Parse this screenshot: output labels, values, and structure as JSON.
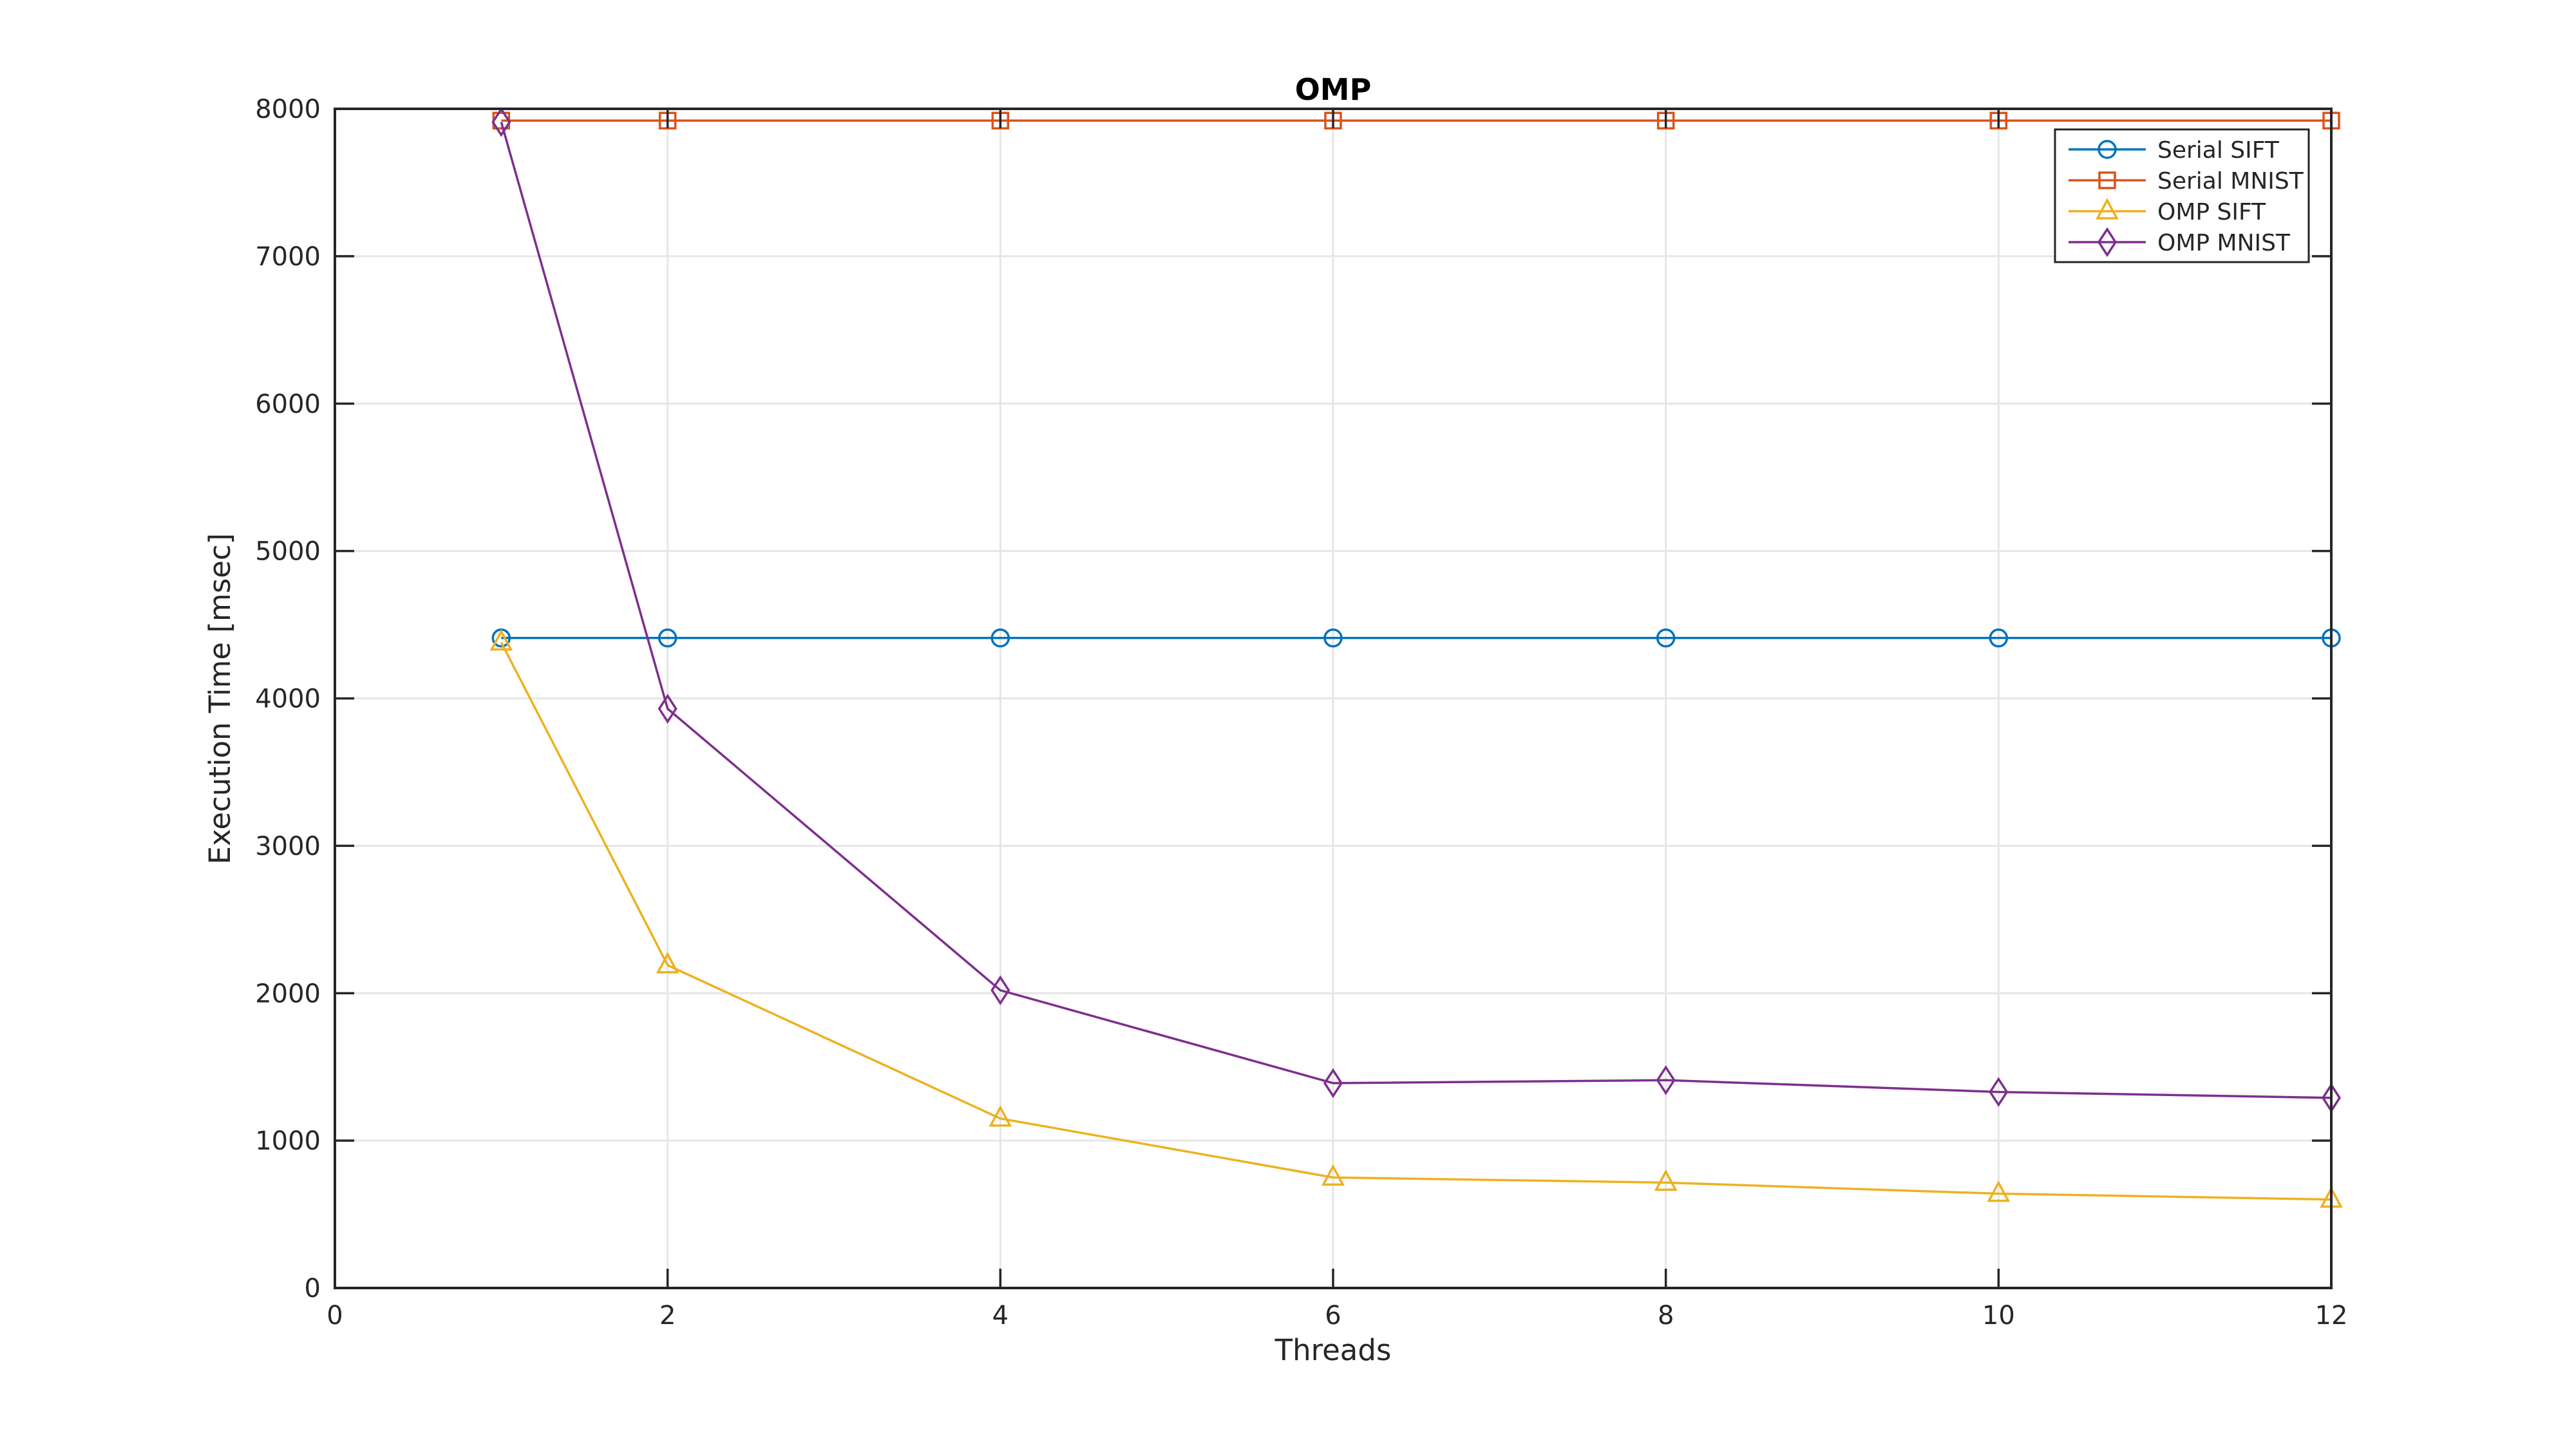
{
  "chart_data": {
    "type": "line",
    "title": "OMP",
    "xlabel": "Threads",
    "ylabel": "Execution Time [msec]",
    "xlim": [
      0,
      12
    ],
    "ylim": [
      0,
      8000
    ],
    "x_ticks": [
      0,
      2,
      4,
      6,
      8,
      10,
      12
    ],
    "y_ticks": [
      0,
      1000,
      2000,
      3000,
      4000,
      5000,
      6000,
      7000,
      8000
    ],
    "grid": true,
    "legend_position": "top-right",
    "x": [
      1,
      2,
      4,
      6,
      8,
      10,
      12
    ],
    "series": [
      {
        "name": "Serial SIFT",
        "marker": "circle",
        "color": "#0072BD",
        "values": [
          4410,
          4410,
          4410,
          4410,
          4410,
          4410,
          4410
        ]
      },
      {
        "name": "Serial MNIST",
        "marker": "square",
        "color": "#D95319",
        "values": [
          7920,
          7920,
          7920,
          7920,
          7920,
          7920,
          7920
        ]
      },
      {
        "name": "OMP SIFT",
        "marker": "triangle",
        "color": "#EDB120",
        "values": [
          4380,
          2190,
          1150,
          750,
          715,
          640,
          600
        ]
      },
      {
        "name": "OMP MNIST",
        "marker": "diamond",
        "color": "#7E2F8E",
        "values": [
          7910,
          3930,
          2020,
          1390,
          1410,
          1330,
          1290
        ]
      }
    ]
  },
  "colors": {
    "axis": "#262626",
    "grid": "#e6e6e6",
    "background": "#ffffff",
    "legend_border": "#262626"
  }
}
